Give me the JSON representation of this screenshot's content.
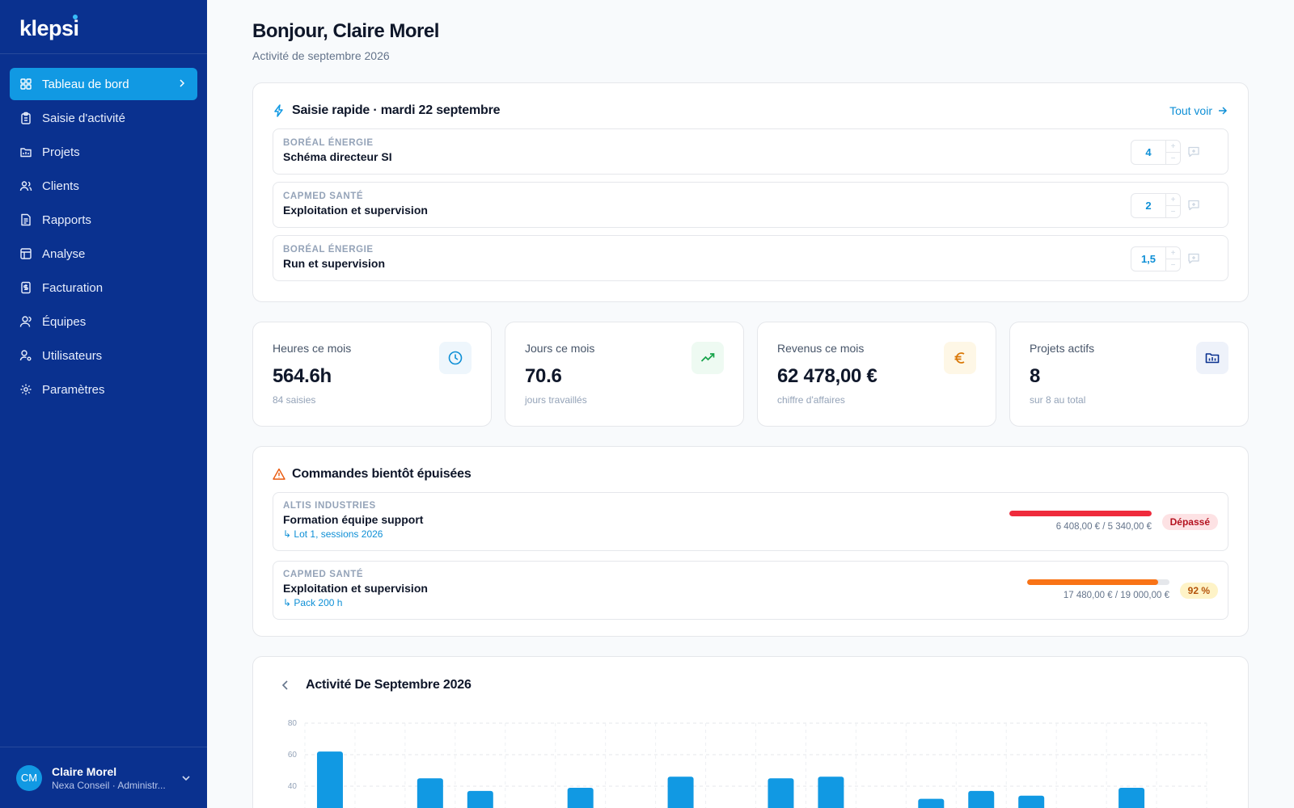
{
  "brand": {
    "name": "klepsi",
    "accent": "#1199e3",
    "sidebar_bg": "#0a318f"
  },
  "sidebar": {
    "items": [
      {
        "label": "Tableau de bord",
        "icon": "dashboard-icon",
        "active": true
      },
      {
        "label": "Saisie d'activité",
        "icon": "clipboard-icon"
      },
      {
        "label": "Projets",
        "icon": "folder-icon"
      },
      {
        "label": "Clients",
        "icon": "users-icon"
      },
      {
        "label": "Rapports",
        "icon": "report-icon"
      },
      {
        "label": "Analyse",
        "icon": "table-icon"
      },
      {
        "label": "Facturation",
        "icon": "invoice-icon"
      },
      {
        "label": "Équipes",
        "icon": "team-icon"
      },
      {
        "label": "Utilisateurs",
        "icon": "user-settings-icon"
      },
      {
        "label": "Paramètres",
        "icon": "gear-icon"
      }
    ],
    "user": {
      "initials": "CM",
      "name": "Claire Morel",
      "org": "Nexa Conseil · Administr..."
    }
  },
  "header": {
    "greeting": "Bonjour, Claire Morel",
    "subtitle": "Activité de septembre 2026"
  },
  "quick_entry": {
    "title": "Saisie rapide · mardi 22 septembre",
    "see_all": "Tout voir",
    "rows": [
      {
        "client": "BORÉAL ÉNERGIE",
        "project": "Schéma directeur SI",
        "value": "4"
      },
      {
        "client": "CAPMED SANTÉ",
        "project": "Exploitation et supervision",
        "value": "2"
      },
      {
        "client": "BORÉAL ÉNERGIE",
        "project": "Run et supervision",
        "value": "1,5"
      }
    ]
  },
  "stats": [
    {
      "label": "Heures ce mois",
      "value": "564.6h",
      "caption": "84 saisies",
      "icon": "clock-icon",
      "color": "#0e8fd6",
      "bg": "#eef6fc"
    },
    {
      "label": "Jours ce mois",
      "value": "70.6",
      "caption": "jours travaillés",
      "icon": "trending-up-icon",
      "color": "#16a34a",
      "bg": "#eefaf2"
    },
    {
      "label": "Revenus ce mois",
      "value": "62 478,00 €",
      "caption": "chiffre d'affaires",
      "icon": "euro-icon",
      "color": "#d97706",
      "bg": "#fef7e6"
    },
    {
      "label": "Projets actifs",
      "value": "8",
      "caption": "sur 8 au total",
      "icon": "folder-icon",
      "color": "#0a318f",
      "bg": "#eef2fa"
    }
  ],
  "orders": {
    "title": "Commandes bientôt épuisées",
    "rows": [
      {
        "client": "ALTIS INDUSTRIES",
        "project": "Formation équipe support",
        "lot": "↳ Lot 1, sessions 2026",
        "amount": "6 408,00 € / 5 340,00 €",
        "status": "Dépassé",
        "fill": 1.0,
        "bar_color": "#ef2b3c",
        "pill_bg": "#fde2e4",
        "pill_color": "#b4121f"
      },
      {
        "client": "CAPMED SANTÉ",
        "project": "Exploitation et supervision",
        "lot": "↳ Pack 200 h",
        "amount": "17 480,00 € / 19 000,00 €",
        "status": "92 %",
        "fill": 0.92,
        "bar_color": "#f97316",
        "pill_bg": "#fef3c7",
        "pill_color": "#b45309"
      }
    ]
  },
  "activity": {
    "title": "Activité De Septembre 2026"
  },
  "chart_data": {
    "type": "bar",
    "title": "Activité De Septembre 2026",
    "ylim": [
      0,
      80
    ],
    "yticks": [
      "80",
      "60",
      "40"
    ],
    "values": [
      62,
      null,
      45,
      37,
      null,
      39,
      null,
      46,
      null,
      45,
      46,
      null,
      32,
      37,
      34,
      null,
      39,
      null
    ],
    "bar_color": "#1199e3",
    "grid": true
  }
}
